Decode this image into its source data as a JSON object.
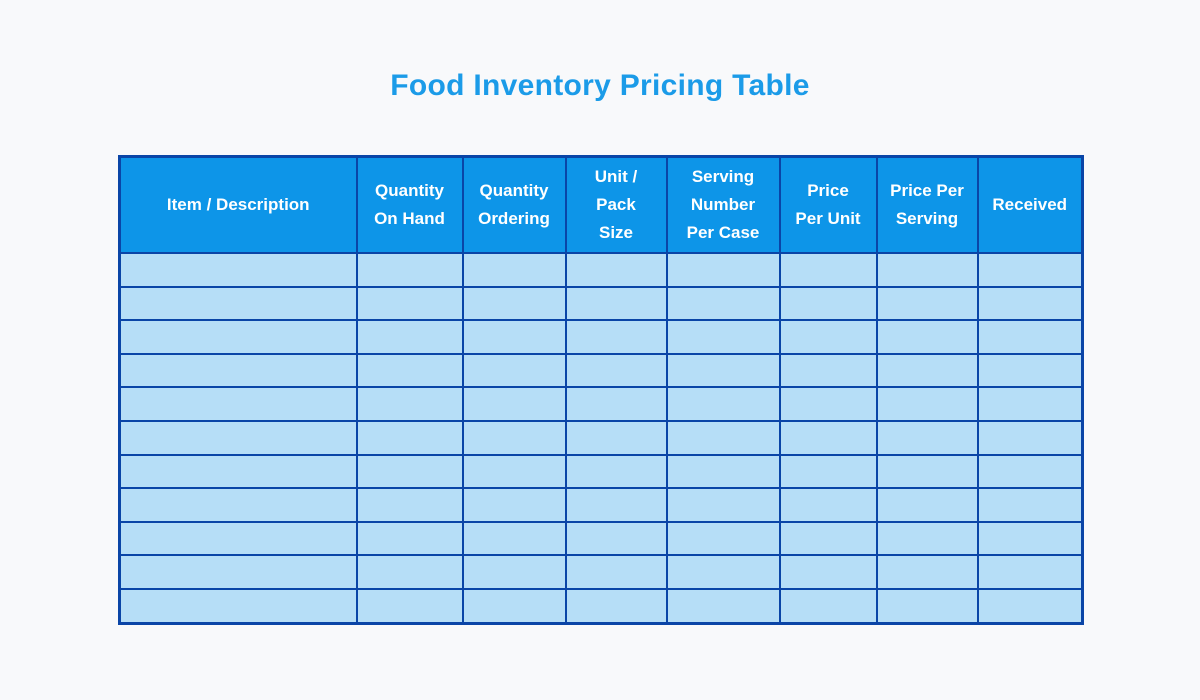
{
  "page": {
    "title": "Food Inventory Pricing Table"
  },
  "colors": {
    "page_background": "#F8F9FB",
    "title_text": "#1B9BE8",
    "header_background": "#0D95E8",
    "header_text": "#FFFFFF",
    "cell_background": "#B6DEF7",
    "table_border": "#0A45A7"
  },
  "table": {
    "columns": [
      "Item / Description",
      "Quantity\nOn Hand",
      "Quantity\nOrdering",
      "Unit /\nPack\nSize",
      "Serving\nNumber\nPer Case",
      "Price\nPer Unit",
      "Price Per\nServing",
      "Received"
    ],
    "rows": [
      [
        "",
        "",
        "",
        "",
        "",
        "",
        "",
        ""
      ],
      [
        "",
        "",
        "",
        "",
        "",
        "",
        "",
        ""
      ],
      [
        "",
        "",
        "",
        "",
        "",
        "",
        "",
        ""
      ],
      [
        "",
        "",
        "",
        "",
        "",
        "",
        "",
        ""
      ],
      [
        "",
        "",
        "",
        "",
        "",
        "",
        "",
        ""
      ],
      [
        "",
        "",
        "",
        "",
        "",
        "",
        "",
        ""
      ],
      [
        "",
        "",
        "",
        "",
        "",
        "",
        "",
        ""
      ],
      [
        "",
        "",
        "",
        "",
        "",
        "",
        "",
        ""
      ],
      [
        "",
        "",
        "",
        "",
        "",
        "",
        "",
        ""
      ],
      [
        "",
        "",
        "",
        "",
        "",
        "",
        "",
        ""
      ],
      [
        "",
        "",
        "",
        "",
        "",
        "",
        "",
        ""
      ]
    ]
  }
}
